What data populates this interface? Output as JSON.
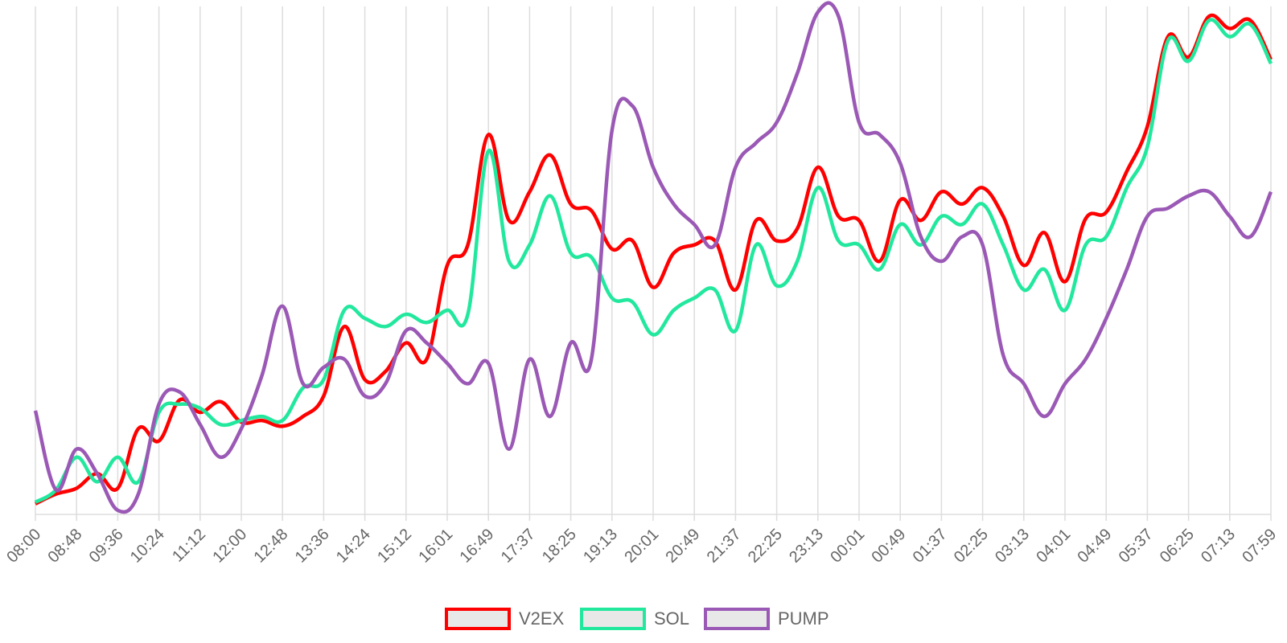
{
  "chart_data": {
    "type": "line",
    "categories": [
      "08:00",
      null,
      "08:48",
      null,
      "09:36",
      null,
      "10:24",
      null,
      "11:12",
      null,
      "12:00",
      null,
      "12:48",
      null,
      "13:36",
      null,
      "14:24",
      null,
      "15:12",
      null,
      "16:01",
      null,
      "16:49",
      null,
      "17:37",
      null,
      "18:25",
      null,
      "19:13",
      null,
      "20:01",
      null,
      "20:49",
      null,
      "21:37",
      null,
      "22:25",
      null,
      "23:13",
      null,
      "00:01",
      null,
      "00:49",
      null,
      "01:37",
      null,
      "02:25",
      null,
      "03:13",
      null,
      "04:01",
      null,
      "04:49",
      null,
      "05:37",
      null,
      "06:25",
      null,
      "07:13",
      null,
      "07:59"
    ],
    "series": [
      {
        "name": "V2EX",
        "color": "#ff0000",
        "values": [
          13,
          25,
          32,
          50,
          32,
          105,
          90,
          140,
          125,
          138,
          113,
          115,
          108,
          120,
          145,
          230,
          165,
          175,
          210,
          190,
          305,
          330,
          465,
          360,
          395,
          440,
          380,
          372,
          325,
          335,
          278,
          320,
          330,
          335,
          275,
          360,
          335,
          350,
          425,
          365,
          360,
          310,
          385,
          360,
          395,
          380,
          400,
          365,
          305,
          345,
          285,
          362,
          370,
          420,
          475,
          585,
          560,
          610,
          595,
          605,
          557
        ]
      },
      {
        "name": "SOL",
        "color": "#22e89e",
        "values": [
          15,
          30,
          70,
          40,
          70,
          40,
          125,
          135,
          130,
          110,
          115,
          120,
          115,
          155,
          165,
          250,
          240,
          230,
          245,
          235,
          250,
          245,
          445,
          310,
          330,
          390,
          320,
          315,
          265,
          260,
          220,
          250,
          265,
          275,
          225,
          330,
          280,
          310,
          400,
          335,
          330,
          300,
          355,
          330,
          365,
          355,
          380,
          330,
          275,
          300,
          250,
          330,
          340,
          400,
          450,
          580,
          555,
          605,
          585,
          600,
          552
        ]
      },
      {
        "name": "PUMP",
        "color": "#9b59b6",
        "values": [
          127,
          30,
          80,
          50,
          5,
          25,
          135,
          150,
          110,
          70,
          105,
          170,
          255,
          160,
          180,
          190,
          145,
          160,
          225,
          210,
          185,
          160,
          185,
          80,
          190,
          120,
          210,
          190,
          470,
          500,
          425,
          380,
          355,
          330,
          425,
          455,
          480,
          540,
          615,
          610,
          480,
          465,
          430,
          340,
          310,
          340,
          330,
          195,
          160,
          120,
          160,
          190,
          240,
          300,
          365,
          375,
          390,
          395,
          365,
          340,
          395
        ]
      }
    ],
    "ylim": [
      0,
      622
    ],
    "grid": true,
    "legend": "bottom"
  }
}
